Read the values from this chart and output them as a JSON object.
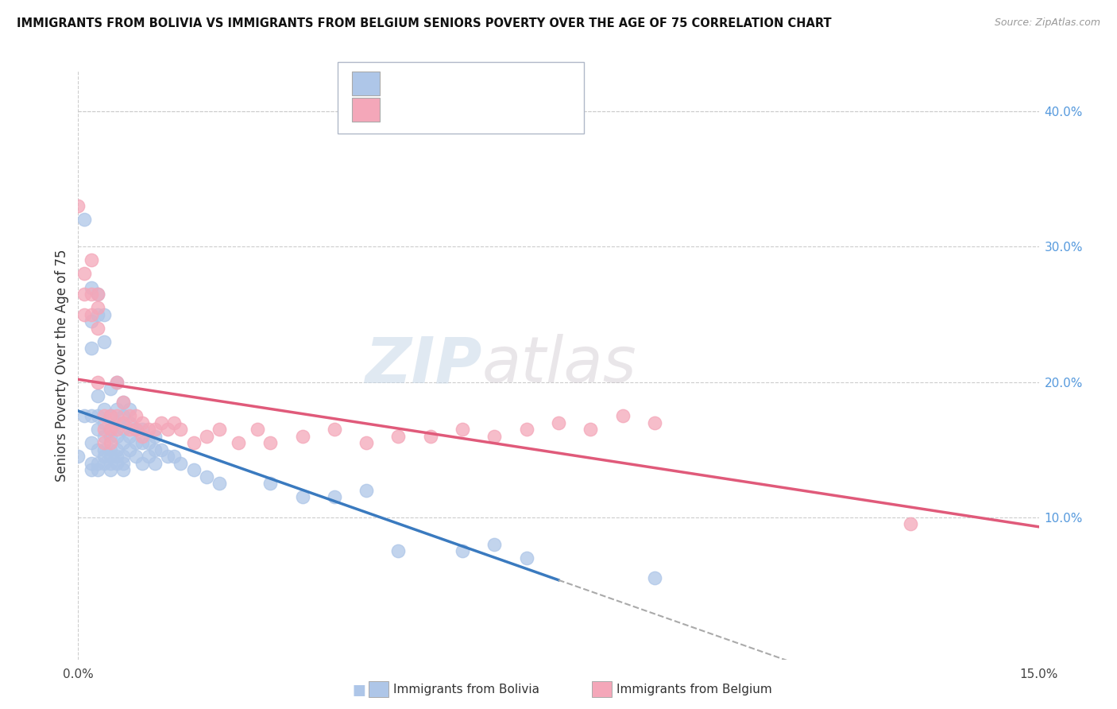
{
  "title": "IMMIGRANTS FROM BOLIVIA VS IMMIGRANTS FROM BELGIUM SENIORS POVERTY OVER THE AGE OF 75 CORRELATION CHART",
  "source": "Source: ZipAtlas.com",
  "ylabel": "Seniors Poverty Over the Age of 75",
  "y_tick_vals": [
    0.1,
    0.2,
    0.3,
    0.4
  ],
  "y_tick_labels": [
    "10.0%",
    "20.0%",
    "30.0%",
    "40.0%"
  ],
  "watermark_zip": "ZIP",
  "watermark_atlas": "atlas",
  "bolivia_color": "#aec6e8",
  "belgium_color": "#f4a7b9",
  "bolivia_line_color": "#3a7abf",
  "belgium_line_color": "#e05a7a",
  "xlim": [
    0.0,
    0.15
  ],
  "ylim": [
    -0.005,
    0.43
  ],
  "background_color": "#ffffff",
  "grid_color": "#cccccc",
  "bolivia_label": "Immigrants from Bolivia",
  "belgium_label": "Immigrants from Belgium",
  "bolivia_scatter": [
    [
      0.0,
      0.145
    ],
    [
      0.001,
      0.175
    ],
    [
      0.001,
      0.32
    ],
    [
      0.002,
      0.27
    ],
    [
      0.002,
      0.245
    ],
    [
      0.002,
      0.225
    ],
    [
      0.002,
      0.175
    ],
    [
      0.002,
      0.155
    ],
    [
      0.002,
      0.14
    ],
    [
      0.002,
      0.135
    ],
    [
      0.003,
      0.265
    ],
    [
      0.003,
      0.25
    ],
    [
      0.003,
      0.19
    ],
    [
      0.003,
      0.175
    ],
    [
      0.003,
      0.165
    ],
    [
      0.003,
      0.15
    ],
    [
      0.003,
      0.14
    ],
    [
      0.003,
      0.135
    ],
    [
      0.004,
      0.25
    ],
    [
      0.004,
      0.23
    ],
    [
      0.004,
      0.18
    ],
    [
      0.004,
      0.17
    ],
    [
      0.004,
      0.16
    ],
    [
      0.004,
      0.15
    ],
    [
      0.004,
      0.145
    ],
    [
      0.004,
      0.14
    ],
    [
      0.005,
      0.195
    ],
    [
      0.005,
      0.175
    ],
    [
      0.005,
      0.165
    ],
    [
      0.005,
      0.16
    ],
    [
      0.005,
      0.15
    ],
    [
      0.005,
      0.145
    ],
    [
      0.005,
      0.14
    ],
    [
      0.005,
      0.135
    ],
    [
      0.006,
      0.2
    ],
    [
      0.006,
      0.18
    ],
    [
      0.006,
      0.17
    ],
    [
      0.006,
      0.16
    ],
    [
      0.006,
      0.15
    ],
    [
      0.006,
      0.145
    ],
    [
      0.006,
      0.14
    ],
    [
      0.007,
      0.185
    ],
    [
      0.007,
      0.175
    ],
    [
      0.007,
      0.165
    ],
    [
      0.007,
      0.155
    ],
    [
      0.007,
      0.145
    ],
    [
      0.007,
      0.14
    ],
    [
      0.007,
      0.135
    ],
    [
      0.008,
      0.18
    ],
    [
      0.008,
      0.17
    ],
    [
      0.008,
      0.16
    ],
    [
      0.008,
      0.15
    ],
    [
      0.009,
      0.165
    ],
    [
      0.009,
      0.155
    ],
    [
      0.009,
      0.145
    ],
    [
      0.01,
      0.165
    ],
    [
      0.01,
      0.155
    ],
    [
      0.01,
      0.14
    ],
    [
      0.011,
      0.155
    ],
    [
      0.011,
      0.145
    ],
    [
      0.012,
      0.16
    ],
    [
      0.012,
      0.15
    ],
    [
      0.012,
      0.14
    ],
    [
      0.013,
      0.15
    ],
    [
      0.014,
      0.145
    ],
    [
      0.015,
      0.145
    ],
    [
      0.016,
      0.14
    ],
    [
      0.018,
      0.135
    ],
    [
      0.02,
      0.13
    ],
    [
      0.022,
      0.125
    ],
    [
      0.03,
      0.125
    ],
    [
      0.035,
      0.115
    ],
    [
      0.04,
      0.115
    ],
    [
      0.045,
      0.12
    ],
    [
      0.05,
      0.075
    ],
    [
      0.06,
      0.075
    ],
    [
      0.065,
      0.08
    ],
    [
      0.07,
      0.07
    ],
    [
      0.09,
      0.055
    ]
  ],
  "belgium_scatter": [
    [
      0.0,
      0.33
    ],
    [
      0.001,
      0.28
    ],
    [
      0.001,
      0.265
    ],
    [
      0.001,
      0.25
    ],
    [
      0.002,
      0.29
    ],
    [
      0.002,
      0.265
    ],
    [
      0.002,
      0.25
    ],
    [
      0.003,
      0.265
    ],
    [
      0.003,
      0.255
    ],
    [
      0.003,
      0.24
    ],
    [
      0.003,
      0.2
    ],
    [
      0.004,
      0.175
    ],
    [
      0.004,
      0.165
    ],
    [
      0.004,
      0.155
    ],
    [
      0.005,
      0.175
    ],
    [
      0.005,
      0.165
    ],
    [
      0.005,
      0.155
    ],
    [
      0.006,
      0.2
    ],
    [
      0.006,
      0.175
    ],
    [
      0.006,
      0.165
    ],
    [
      0.007,
      0.185
    ],
    [
      0.007,
      0.17
    ],
    [
      0.008,
      0.175
    ],
    [
      0.008,
      0.165
    ],
    [
      0.009,
      0.175
    ],
    [
      0.009,
      0.165
    ],
    [
      0.01,
      0.17
    ],
    [
      0.01,
      0.16
    ],
    [
      0.011,
      0.165
    ],
    [
      0.012,
      0.165
    ],
    [
      0.013,
      0.17
    ],
    [
      0.014,
      0.165
    ],
    [
      0.015,
      0.17
    ],
    [
      0.016,
      0.165
    ],
    [
      0.018,
      0.155
    ],
    [
      0.02,
      0.16
    ],
    [
      0.022,
      0.165
    ],
    [
      0.025,
      0.155
    ],
    [
      0.028,
      0.165
    ],
    [
      0.03,
      0.155
    ],
    [
      0.035,
      0.16
    ],
    [
      0.04,
      0.165
    ],
    [
      0.045,
      0.155
    ],
    [
      0.05,
      0.16
    ],
    [
      0.055,
      0.16
    ],
    [
      0.06,
      0.165
    ],
    [
      0.065,
      0.16
    ],
    [
      0.07,
      0.165
    ],
    [
      0.075,
      0.17
    ],
    [
      0.08,
      0.165
    ],
    [
      0.085,
      0.175
    ],
    [
      0.09,
      0.17
    ],
    [
      0.13,
      0.095
    ]
  ]
}
